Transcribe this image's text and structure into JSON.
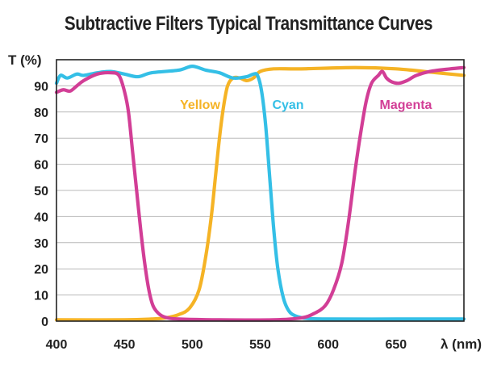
{
  "chart_data": {
    "type": "line",
    "title": "Subtractive Filters Typical Transmittance Curves",
    "xlabel": "λ (nm)",
    "ylabel": "T (%)",
    "xlim": [
      400,
      700
    ],
    "ylim": [
      0,
      100
    ],
    "x_ticks": [
      "400",
      "450",
      "500",
      "550",
      "600",
      "650"
    ],
    "y_ticks": [
      "0",
      "10",
      "20",
      "30",
      "40",
      "50",
      "60",
      "70",
      "80",
      "90"
    ],
    "grid": "horizontal",
    "series": [
      {
        "name": "Yellow",
        "color": "#f5b325",
        "points": [
          [
            400,
            0.5
          ],
          [
            450,
            0.5
          ],
          [
            470,
            0.8
          ],
          [
            480,
            1.2
          ],
          [
            490,
            2.5
          ],
          [
            498,
            5
          ],
          [
            505,
            12
          ],
          [
            510,
            25
          ],
          [
            514,
            40
          ],
          [
            517,
            55
          ],
          [
            520,
            70
          ],
          [
            523,
            82
          ],
          [
            526,
            90
          ],
          [
            530,
            93
          ],
          [
            535,
            93
          ],
          [
            540,
            92
          ],
          [
            545,
            93
          ],
          [
            550,
            95.5
          ],
          [
            560,
            96.5
          ],
          [
            580,
            96.5
          ],
          [
            620,
            97
          ],
          [
            650,
            96.5
          ],
          [
            680,
            95
          ],
          [
            700,
            94
          ]
        ]
      },
      {
        "name": "Cyan",
        "color": "#34bfe6",
        "points": [
          [
            400,
            91
          ],
          [
            403,
            94
          ],
          [
            408,
            93
          ],
          [
            415,
            94.5
          ],
          [
            420,
            94
          ],
          [
            430,
            95
          ],
          [
            440,
            95.5
          ],
          [
            450,
            94.5
          ],
          [
            460,
            93.5
          ],
          [
            470,
            95
          ],
          [
            490,
            96
          ],
          [
            500,
            97.5
          ],
          [
            510,
            96
          ],
          [
            520,
            95
          ],
          [
            530,
            93
          ],
          [
            540,
            93.5
          ],
          [
            545,
            94.5
          ],
          [
            548,
            94
          ],
          [
            551,
            88
          ],
          [
            554,
            75
          ],
          [
            557,
            55
          ],
          [
            560,
            35
          ],
          [
            563,
            20
          ],
          [
            567,
            9
          ],
          [
            571,
            4
          ],
          [
            576,
            2
          ],
          [
            585,
            1
          ],
          [
            600,
            0.8
          ],
          [
            650,
            0.8
          ],
          [
            700,
            0.8
          ]
        ]
      },
      {
        "name": "Magenta",
        "color": "#d23e96",
        "points": [
          [
            400,
            87.5
          ],
          [
            405,
            88.5
          ],
          [
            410,
            88
          ],
          [
            415,
            90
          ],
          [
            420,
            92
          ],
          [
            430,
            94.5
          ],
          [
            440,
            95
          ],
          [
            446,
            94
          ],
          [
            450,
            88
          ],
          [
            453,
            80
          ],
          [
            456,
            65
          ],
          [
            459,
            50
          ],
          [
            462,
            35
          ],
          [
            465,
            22
          ],
          [
            468,
            12
          ],
          [
            471,
            6
          ],
          [
            475,
            3
          ],
          [
            480,
            1.5
          ],
          [
            490,
            0.8
          ],
          [
            520,
            0.5
          ],
          [
            560,
            0.5
          ],
          [
            580,
            1.2
          ],
          [
            590,
            3
          ],
          [
            598,
            6
          ],
          [
            604,
            12
          ],
          [
            610,
            22
          ],
          [
            615,
            38
          ],
          [
            620,
            58
          ],
          [
            624,
            72
          ],
          [
            628,
            84
          ],
          [
            632,
            91
          ],
          [
            637,
            94
          ],
          [
            640,
            95.5
          ],
          [
            643,
            93
          ],
          [
            647,
            91.5
          ],
          [
            652,
            91
          ],
          [
            658,
            92
          ],
          [
            665,
            94
          ],
          [
            675,
            95.5
          ],
          [
            690,
            96.5
          ],
          [
            700,
            97
          ]
        ]
      }
    ]
  }
}
